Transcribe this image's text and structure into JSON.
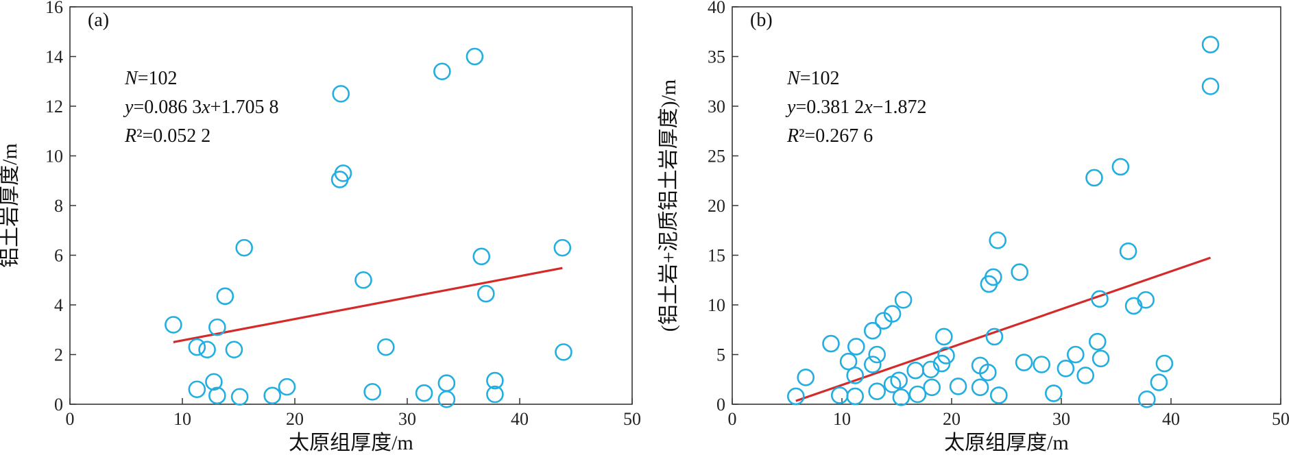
{
  "chart_data": [
    {
      "type": "scatter",
      "panel": "(a)",
      "xlabel": "太原组厚度/m",
      "ylabel": "铝土岩厚度/m",
      "xlim": [
        0,
        50
      ],
      "ylim": [
        0,
        16
      ],
      "xticks": [
        0,
        10,
        20,
        30,
        40,
        50
      ],
      "yticks": [
        0,
        2,
        4,
        6,
        8,
        10,
        12,
        14,
        16
      ],
      "annotations": {
        "n": "N=102",
        "eq": "y=0.086 3x+1.705 8",
        "r2": "R²=0.052 2"
      },
      "fit": {
        "slope": 0.0863,
        "intercept": 1.7058,
        "x_range": [
          9.2,
          43.8
        ]
      },
      "grid": false,
      "points": [
        [
          9.2,
          3.2
        ],
        [
          11.3,
          2.3
        ],
        [
          12.2,
          2.2
        ],
        [
          11.3,
          0.6
        ],
        [
          12.8,
          0.9
        ],
        [
          13.1,
          0.35
        ],
        [
          13.1,
          3.1
        ],
        [
          13.8,
          4.35
        ],
        [
          14.6,
          2.2
        ],
        [
          15.1,
          0.3
        ],
        [
          15.5,
          6.3
        ],
        [
          18.0,
          0.35
        ],
        [
          19.3,
          0.7
        ],
        [
          24.0,
          9.05
        ],
        [
          24.3,
          9.3
        ],
        [
          24.1,
          12.5
        ],
        [
          26.1,
          5.0
        ],
        [
          26.9,
          0.5
        ],
        [
          28.1,
          2.3
        ],
        [
          31.5,
          0.45
        ],
        [
          33.1,
          13.4
        ],
        [
          33.5,
          0.85
        ],
        [
          33.5,
          0.2
        ],
        [
          36.0,
          14.0
        ],
        [
          36.6,
          5.95
        ],
        [
          37.0,
          4.45
        ],
        [
          37.8,
          0.95
        ],
        [
          37.8,
          0.4
        ],
        [
          43.8,
          6.3
        ],
        [
          43.9,
          2.1
        ]
      ]
    },
    {
      "type": "scatter",
      "panel": "(b)",
      "xlabel": "太原组厚度/m",
      "ylabel": "(铝土岩+泥质铝土岩厚度)/m",
      "xlim": [
        0,
        50
      ],
      "ylim": [
        0,
        40
      ],
      "xticks": [
        0,
        10,
        20,
        30,
        40,
        50
      ],
      "yticks": [
        0,
        5,
        10,
        15,
        20,
        25,
        30,
        35,
        40
      ],
      "annotations": {
        "n": "N=102",
        "eq": "y=0.381 2x−1.872",
        "r2": "R²=0.267 6"
      },
      "fit": {
        "slope": 0.3812,
        "intercept": -1.872,
        "x_range": [
          5.8,
          43.6
        ]
      },
      "grid": false,
      "points": [
        [
          5.8,
          0.8
        ],
        [
          6.7,
          2.7
        ],
        [
          9.0,
          6.1
        ],
        [
          9.8,
          0.9
        ],
        [
          10.6,
          4.3
        ],
        [
          11.2,
          0.8
        ],
        [
          11.2,
          2.9
        ],
        [
          11.3,
          5.8
        ],
        [
          12.8,
          7.4
        ],
        [
          12.8,
          4.0
        ],
        [
          13.2,
          5.0
        ],
        [
          13.2,
          1.3
        ],
        [
          13.8,
          8.4
        ],
        [
          14.6,
          9.1
        ],
        [
          14.6,
          2.0
        ],
        [
          15.2,
          2.4
        ],
        [
          15.4,
          0.7
        ],
        [
          15.6,
          10.5
        ],
        [
          16.7,
          3.4
        ],
        [
          16.9,
          1.0
        ],
        [
          18.1,
          3.5
        ],
        [
          18.2,
          1.7
        ],
        [
          19.1,
          4.1
        ],
        [
          19.3,
          6.8
        ],
        [
          19.5,
          4.9
        ],
        [
          20.6,
          1.8
        ],
        [
          22.6,
          1.7
        ],
        [
          22.6,
          3.9
        ],
        [
          23.3,
          3.2
        ],
        [
          23.4,
          12.1
        ],
        [
          23.8,
          12.8
        ],
        [
          23.9,
          6.8
        ],
        [
          24.2,
          16.5
        ],
        [
          24.3,
          0.9
        ],
        [
          26.2,
          13.3
        ],
        [
          26.6,
          4.2
        ],
        [
          28.2,
          4.0
        ],
        [
          29.3,
          1.1
        ],
        [
          30.4,
          3.6
        ],
        [
          31.3,
          5.0
        ],
        [
          32.2,
          2.9
        ],
        [
          33.0,
          22.8
        ],
        [
          33.3,
          6.3
        ],
        [
          33.5,
          10.6
        ],
        [
          33.6,
          4.6
        ],
        [
          35.4,
          23.9
        ],
        [
          36.1,
          15.4
        ],
        [
          36.6,
          9.9
        ],
        [
          37.7,
          10.5
        ],
        [
          37.8,
          0.5
        ],
        [
          38.9,
          2.2
        ],
        [
          39.4,
          4.1
        ],
        [
          43.6,
          36.2
        ],
        [
          43.6,
          32.0
        ]
      ]
    }
  ],
  "colors": {
    "marker": "#22aee0",
    "fit": "#d42a2a",
    "axis": "#333333",
    "text": "#111111"
  }
}
